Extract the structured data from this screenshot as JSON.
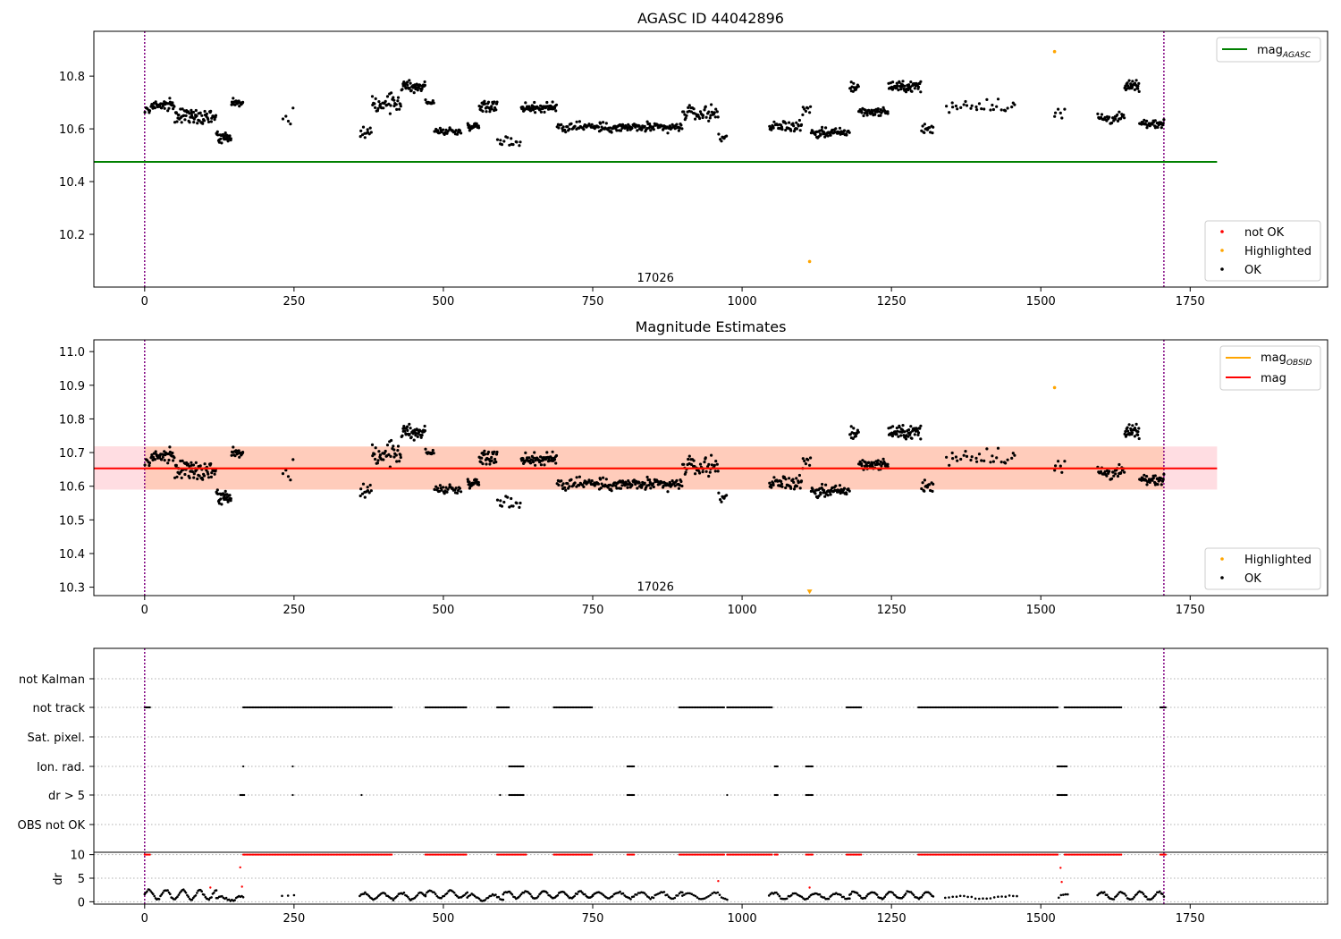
{
  "chart_data": [
    {
      "type": "scatter",
      "title": "AGASC ID 44042896",
      "xlim": [
        -85,
        1980
      ],
      "ylim": [
        10.0,
        10.97
      ],
      "xticks": [
        0,
        250,
        500,
        750,
        1000,
        1250,
        1500,
        1750
      ],
      "yticks": [
        10.2,
        10.4,
        10.6,
        10.8
      ],
      "vlines": [
        0,
        1706
      ],
      "vline_color": "#800080",
      "hline": {
        "value": 10.475,
        "x_range": [
          -85,
          1795
        ],
        "color": "#008000",
        "label": "mag",
        "label_sub": "AGASC"
      },
      "annotation": {
        "text": "17026",
        "x": 855,
        "y": 10.02
      },
      "legend_top": {
        "placement": "upper right",
        "entries": [
          {
            "label": "mag",
            "sub": "AGASC",
            "color": "#008000"
          }
        ]
      },
      "legend_bottom": {
        "placement": "lower right",
        "entries": [
          {
            "label": "not OK",
            "color": "#ff0000"
          },
          {
            "label": "Highlighted",
            "color": "#ffa500"
          },
          {
            "label": "OK",
            "color": "#000000"
          }
        ]
      },
      "highlighted_points": [
        [
          1523,
          10.893
        ],
        [
          1113,
          10.097
        ]
      ],
      "segments": [
        {
          "x0": 0,
          "x1": 10,
          "n": 6,
          "base": 10.67,
          "slope": 0.0,
          "spread": 0.02
        },
        {
          "x0": 10,
          "x1": 50,
          "n": 40,
          "base": 10.69,
          "slope": 0.0,
          "spread": 0.03
        },
        {
          "x0": 50,
          "x1": 120,
          "n": 70,
          "base": 10.65,
          "slope": 0.0,
          "spread": 0.04
        },
        {
          "x0": 120,
          "x1": 145,
          "n": 30,
          "base": 10.57,
          "slope": 0.0,
          "spread": 0.03
        },
        {
          "x0": 145,
          "x1": 165,
          "n": 20,
          "base": 10.7,
          "slope": 0.0,
          "spread": 0.02
        },
        {
          "x0": 230,
          "x1": 250,
          "n": 5,
          "base": 10.63,
          "slope": 0.0,
          "spread": 0.07
        },
        {
          "x0": 360,
          "x1": 380,
          "n": 12,
          "base": 10.58,
          "slope": 0.0,
          "spread": 0.03
        },
        {
          "x0": 380,
          "x1": 430,
          "n": 40,
          "base": 10.7,
          "slope": 0.0,
          "spread": 0.05
        },
        {
          "x0": 430,
          "x1": 470,
          "n": 45,
          "base": 10.76,
          "slope": 0.0,
          "spread": 0.03
        },
        {
          "x0": 470,
          "x1": 485,
          "n": 10,
          "base": 10.7,
          "slope": 0.0,
          "spread": 0.02
        },
        {
          "x0": 485,
          "x1": 530,
          "n": 30,
          "base": 10.59,
          "slope": 0.0,
          "spread": 0.02
        },
        {
          "x0": 540,
          "x1": 560,
          "n": 20,
          "base": 10.61,
          "slope": 0.0,
          "spread": 0.02
        },
        {
          "x0": 560,
          "x1": 590,
          "n": 35,
          "base": 10.69,
          "slope": 0.0,
          "spread": 0.03
        },
        {
          "x0": 590,
          "x1": 630,
          "n": 15,
          "base": 10.55,
          "slope": 0.0,
          "spread": 0.03
        },
        {
          "x0": 630,
          "x1": 690,
          "n": 60,
          "base": 10.68,
          "slope": 0.0,
          "spread": 0.03
        },
        {
          "x0": 690,
          "x1": 750,
          "n": 40,
          "base": 10.61,
          "slope": 0.0,
          "spread": 0.03
        },
        {
          "x0": 750,
          "x1": 900,
          "n": 130,
          "base": 10.605,
          "slope": 0.0,
          "spread": 0.025
        },
        {
          "x0": 900,
          "x1": 960,
          "n": 45,
          "base": 10.66,
          "slope": 0.0,
          "spread": 0.04
        },
        {
          "x0": 960,
          "x1": 975,
          "n": 8,
          "base": 10.57,
          "slope": 0.0,
          "spread": 0.02
        },
        {
          "x0": 1045,
          "x1": 1100,
          "n": 45,
          "base": 10.61,
          "slope": 0.0,
          "spread": 0.03
        },
        {
          "x0": 1100,
          "x1": 1115,
          "n": 8,
          "base": 10.68,
          "slope": 0.0,
          "spread": 0.04
        },
        {
          "x0": 1115,
          "x1": 1180,
          "n": 60,
          "base": 10.585,
          "slope": 0.0,
          "spread": 0.025
        },
        {
          "x0": 1180,
          "x1": 1195,
          "n": 15,
          "base": 10.76,
          "slope": 0.0,
          "spread": 0.04
        },
        {
          "x0": 1195,
          "x1": 1245,
          "n": 45,
          "base": 10.665,
          "slope": 0.0,
          "spread": 0.02
        },
        {
          "x0": 1245,
          "x1": 1300,
          "n": 55,
          "base": 10.76,
          "slope": 0.0,
          "spread": 0.03
        },
        {
          "x0": 1300,
          "x1": 1320,
          "n": 15,
          "base": 10.6,
          "slope": 0.0,
          "spread": 0.03
        },
        {
          "x0": 1340,
          "x1": 1460,
          "n": 30,
          "base": 10.69,
          "slope": 0.0,
          "spread": 0.04
        },
        {
          "x0": 1520,
          "x1": 1540,
          "n": 6,
          "base": 10.66,
          "slope": 0.0,
          "spread": 0.06
        },
        {
          "x0": 1595,
          "x1": 1640,
          "n": 35,
          "base": 10.64,
          "slope": 0.0,
          "spread": 0.03
        },
        {
          "x0": 1640,
          "x1": 1665,
          "n": 30,
          "base": 10.76,
          "slope": 0.0,
          "spread": 0.03
        },
        {
          "x0": 1665,
          "x1": 1706,
          "n": 40,
          "base": 10.62,
          "slope": 0.0,
          "spread": 0.02
        }
      ]
    },
    {
      "type": "scatter",
      "title": "Magnitude Estimates",
      "xlim": [
        -85,
        1980
      ],
      "ylim": [
        10.275,
        11.035
      ],
      "xticks": [
        0,
        250,
        500,
        750,
        1000,
        1250,
        1500,
        1750
      ],
      "yticks": [
        10.3,
        10.4,
        10.5,
        10.6,
        10.7,
        10.8,
        10.9,
        11.0
      ],
      "vlines": [
        0,
        1706
      ],
      "vline_color": "#800080",
      "band": {
        "y0": 10.59,
        "y1": 10.718,
        "x_range": [
          -85,
          1795
        ],
        "color_left": "#ffccbb",
        "color_right": "#ffdde2"
      },
      "mag_line": {
        "value": 10.653,
        "x_range": [
          -85,
          1795
        ],
        "color": "#ff0000",
        "label": "mag"
      },
      "obsid_line": {
        "value": 10.653,
        "x_range": [
          0,
          1706
        ],
        "color": "#ffa500",
        "label": "mag",
        "label_sub": "OBSID"
      },
      "annotation": {
        "text": "17026",
        "x": 855,
        "y": 10.29
      },
      "legend_top": {
        "placement": "upper right",
        "entries": [
          {
            "label": "mag",
            "sub": "OBSID",
            "color": "#ffa500"
          },
          {
            "label": "mag",
            "color": "#ff0000"
          }
        ]
      },
      "legend_bottom": {
        "placement": "lower right",
        "entries": [
          {
            "label": "Highlighted",
            "color": "#ffa500"
          },
          {
            "label": "OK",
            "color": "#000000"
          }
        ]
      },
      "highlighted_points": [
        [
          1523,
          10.893
        ]
      ],
      "arrow_marker": {
        "x": 1113,
        "y": 10.285,
        "color": "#ffa500"
      }
    },
    {
      "type": "scatter",
      "title": "",
      "xlim": [
        -85,
        1980
      ],
      "xticks": [
        0,
        250,
        500,
        750,
        1000,
        1250,
        1500,
        1750
      ],
      "vlines": [
        0,
        1706
      ],
      "vline_color": "#800080",
      "flag_rows": [
        "not Kalman",
        "not track",
        "Sat. pixel.",
        "Ion. rad.",
        "dr > 5",
        "OBS not OK"
      ],
      "flag_ranges": {
        "not Kalman": [],
        "not track": [
          [
            0,
            10
          ],
          [
            165,
            415
          ],
          [
            470,
            540
          ],
          [
            590,
            610
          ],
          [
            685,
            750
          ],
          [
            895,
            970
          ],
          [
            975,
            1050
          ],
          [
            1175,
            1200
          ],
          [
            1295,
            1530
          ],
          [
            1540,
            1635
          ],
          [
            1700,
            1710
          ]
        ],
        "Sat. pixel.": [],
        "Ion. rad.": [
          [
            165,
            167
          ],
          [
            248,
            250
          ],
          [
            610,
            635
          ],
          [
            808,
            820
          ],
          [
            1055,
            1060
          ],
          [
            1107,
            1120
          ],
          [
            1528,
            1545
          ]
        ],
        "dr > 5": [
          [
            160,
            168
          ],
          [
            248,
            250
          ],
          [
            363,
            365
          ],
          [
            595,
            597
          ],
          [
            610,
            635
          ],
          [
            808,
            820
          ],
          [
            975,
            977
          ],
          [
            1055,
            1060
          ],
          [
            1107,
            1120
          ],
          [
            1528,
            1545
          ]
        ],
        "OBS not OK": []
      },
      "dr_panel": {
        "ylabel": "dr",
        "ylim": [
          -0.5,
          10.5
        ],
        "yticks": [
          0,
          5,
          10
        ],
        "flagged_ranges": [
          [
            0,
            10
          ],
          [
            165,
            415
          ],
          [
            470,
            540
          ],
          [
            590,
            640
          ],
          [
            685,
            750
          ],
          [
            808,
            820
          ],
          [
            895,
            970
          ],
          [
            975,
            1050
          ],
          [
            1055,
            1060
          ],
          [
            1107,
            1120
          ],
          [
            1175,
            1200
          ],
          [
            1295,
            1530
          ],
          [
            1540,
            1635
          ],
          [
            1700,
            1710
          ]
        ],
        "scatter_red_points": [
          [
            160,
            7.3
          ],
          [
            163,
            3.2
          ],
          [
            110,
            3.0
          ],
          [
            960,
            4.4
          ],
          [
            1533,
            7.2
          ],
          [
            1535,
            4.2
          ],
          [
            1113,
            3.0
          ]
        ],
        "dr_segments": [
          {
            "x0": 0,
            "x1": 120,
            "n": 60,
            "base": 1.5,
            "amp": 1.2
          },
          {
            "x0": 120,
            "x1": 165,
            "n": 20,
            "base": 0.7,
            "amp": 0.5
          },
          {
            "x0": 230,
            "x1": 250,
            "n": 3,
            "base": 1.2,
            "amp": 0.3
          },
          {
            "x0": 360,
            "x1": 470,
            "n": 50,
            "base": 1.2,
            "amp": 0.8
          },
          {
            "x0": 470,
            "x1": 540,
            "n": 30,
            "base": 1.6,
            "amp": 0.9
          },
          {
            "x0": 540,
            "x1": 600,
            "n": 25,
            "base": 0.9,
            "amp": 0.7
          },
          {
            "x0": 600,
            "x1": 750,
            "n": 70,
            "base": 1.5,
            "amp": 0.9
          },
          {
            "x0": 750,
            "x1": 900,
            "n": 60,
            "base": 1.4,
            "amp": 0.8
          },
          {
            "x0": 900,
            "x1": 975,
            "n": 25,
            "base": 1.2,
            "amp": 0.8
          },
          {
            "x0": 1045,
            "x1": 1180,
            "n": 55,
            "base": 1.2,
            "amp": 0.8
          },
          {
            "x0": 1180,
            "x1": 1320,
            "n": 65,
            "base": 1.4,
            "amp": 0.9
          },
          {
            "x0": 1340,
            "x1": 1460,
            "n": 20,
            "base": 1.0,
            "amp": 0.3
          },
          {
            "x0": 1530,
            "x1": 1545,
            "n": 5,
            "base": 1.0,
            "amp": 0.8
          },
          {
            "x0": 1595,
            "x1": 1706,
            "n": 50,
            "base": 1.3,
            "amp": 1.0
          }
        ]
      }
    }
  ]
}
